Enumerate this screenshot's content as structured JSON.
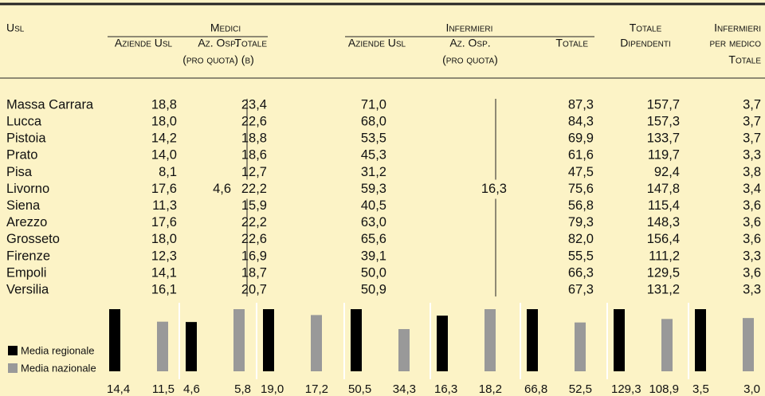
{
  "header": {
    "usl": "Usl",
    "medici": "Medici",
    "medici_cols": [
      "Aziende Usl",
      "Az. Osp.",
      "Totale"
    ],
    "medici_note": "(pro quota) (b)",
    "infermieri": "Infermieri",
    "infermieri_cols": [
      "Aziende Usl",
      "Az. Osp.",
      "Totale"
    ],
    "infermieri_note": "(pro quota)",
    "totale_dipendenti": [
      "Totale",
      "Dipendenti"
    ],
    "infermieri_per_medico": [
      "Infermieri",
      "per medico",
      "Totale"
    ]
  },
  "table": {
    "rows": [
      [
        "Massa Carrara",
        "18,8",
        "23,4",
        "71,0",
        "87,3",
        "157,7",
        "3,7"
      ],
      [
        "Lucca",
        "18,0",
        "22,6",
        "68,0",
        "84,3",
        "157,3",
        "3,7"
      ],
      [
        "Pistoia",
        "14,2",
        "18,8",
        "53,5",
        "69,9",
        "133,7",
        "3,7"
      ],
      [
        "Prato",
        "14,0",
        "18,6",
        "45,3",
        "61,6",
        "119,7",
        "3,3"
      ],
      [
        "Pisa",
        "8,1",
        "12,7",
        "31,2",
        "47,5",
        "92,4",
        "3,8"
      ],
      [
        "Livorno",
        "17,6",
        "22,2",
        "59,3",
        "75,6",
        "147,8",
        "3,4"
      ],
      [
        "Siena",
        "11,3",
        "15,9",
        "40,5",
        "56,8",
        "115,4",
        "3,6"
      ],
      [
        "Arezzo",
        "17,6",
        "22,2",
        "63,0",
        "79,3",
        "148,3",
        "3,6"
      ],
      [
        "Grosseto",
        "18,0",
        "22,6",
        "65,6",
        "82,0",
        "156,4",
        "3,6"
      ],
      [
        "Firenze",
        "12,3",
        "16,9",
        "39,1",
        "55,5",
        "111,2",
        "3,3"
      ],
      [
        "Empoli",
        "14,1",
        "18,7",
        "50,0",
        "66,3",
        "129,5",
        "3,6"
      ],
      [
        "Versilia",
        "16,1",
        "20,7",
        "50,9",
        "67,3",
        "131,2",
        "3,3"
      ]
    ],
    "medici_az_osp": "4,6",
    "infermieri_az_osp": "16,3"
  },
  "averages": {
    "series": [
      {
        "name": "Media regionale",
        "color": "#000000",
        "values": [
          14.4,
          4.6,
          19.0,
          50.5,
          16.3,
          66.8,
          129.3,
          3.5
        ],
        "value_labels": [
          "14,4",
          "4,6",
          "19,0",
          "50,5",
          "16,3",
          "66,8",
          "129,3",
          "3,5"
        ]
      },
      {
        "name": "Media nazionale",
        "color": "#999999",
        "values": [
          11.5,
          5.8,
          17.2,
          34.3,
          18.2,
          52.5,
          108.9,
          3.0
        ],
        "value_labels": [
          "11,5",
          "5,8",
          "17,2",
          "34,3",
          "18,2",
          "52,5",
          "108,9",
          "3,0"
        ]
      }
    ]
  }
}
